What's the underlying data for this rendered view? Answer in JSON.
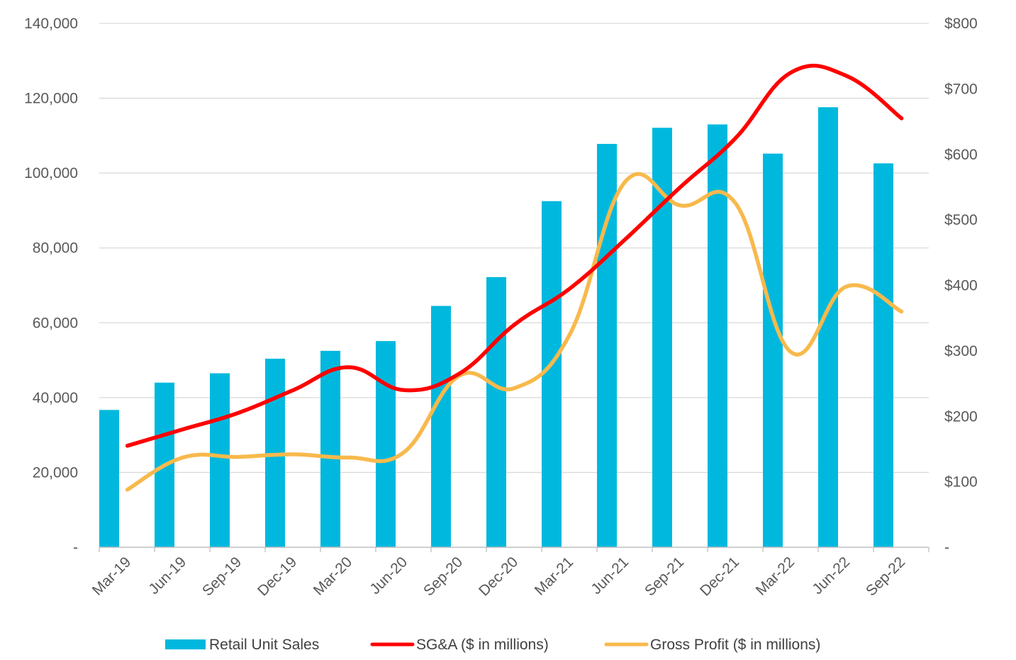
{
  "chart_data": {
    "type": "bar",
    "categories": [
      "Mar-19",
      "Jun-19",
      "Sep-19",
      "Dec-19",
      "Mar-20",
      "Jun-20",
      "Sep-20",
      "Dec-20",
      "Mar-21",
      "Jun-21",
      "Sep-21",
      "Dec-21",
      "Mar-22",
      "Jun-22",
      "Sep-22"
    ],
    "title": "",
    "xlabel": "",
    "ylabel": "",
    "ylim": [
      0,
      140000
    ],
    "y2lim": [
      0,
      800
    ],
    "y_ticks": [
      "-",
      "20,000",
      "40,000",
      "60,000",
      "80,000",
      "100,000",
      "120,000",
      "140,000"
    ],
    "y2_ticks": [
      "-",
      "$100",
      "$200",
      "$300",
      "$400",
      "$500",
      "$600",
      "$700",
      "$800"
    ],
    "grid": true,
    "legend_position": "bottom",
    "series": [
      {
        "name": "Retail Unit Sales",
        "type": "bar",
        "axis": "left",
        "color": "#00B8DE",
        "values": [
          36700,
          44000,
          46500,
          50400,
          52500,
          55100,
          64500,
          72200,
          92500,
          107800,
          112100,
          113000,
          105200,
          117600,
          102600
        ]
      },
      {
        "name": "SG&A ($ in millions)",
        "type": "line",
        "axis": "right",
        "color": "#FF0000",
        "values": [
          155,
          180,
          205,
          240,
          275,
          240,
          265,
          340,
          395,
          470,
          550,
          625,
          725,
          720,
          655
        ]
      },
      {
        "name": "Gross Profit ($ in millions)",
        "type": "line",
        "axis": "right",
        "color": "#F8B94C",
        "values": [
          88,
          137,
          138,
          142,
          137,
          145,
          262,
          243,
          325,
          558,
          522,
          525,
          298,
          398,
          360
        ]
      }
    ]
  }
}
